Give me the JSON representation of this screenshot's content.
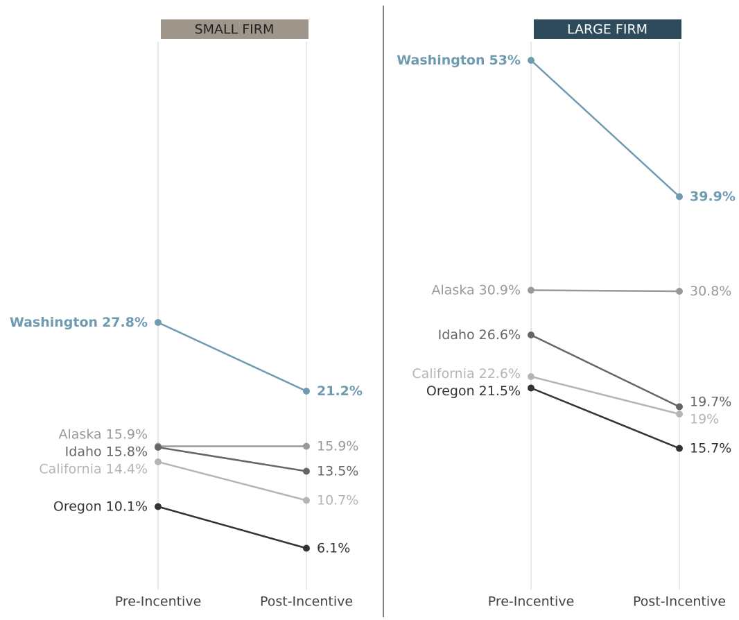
{
  "chart_data": [
    {
      "type": "slope",
      "title": "SMALL FIRM",
      "title_background": "#9e958b",
      "title_color": "#222222",
      "categories": [
        "Pre-Incentive",
        "Post-Incentive"
      ],
      "ylim": [
        0,
        55
      ],
      "series": [
        {
          "name": "Washington",
          "color": "#6f9bb0",
          "bold": true,
          "values": [
            27.8,
            21.2
          ],
          "value_labels": [
            "27.8%",
            "21.2%"
          ]
        },
        {
          "name": "Alaska",
          "color": "#999999",
          "values": [
            15.9,
            15.9
          ],
          "value_labels": [
            "15.9%",
            "15.9%"
          ]
        },
        {
          "name": "Idaho",
          "color": "#666666",
          "values": [
            15.8,
            13.5
          ],
          "value_labels": [
            "15.8%",
            "13.5%"
          ]
        },
        {
          "name": "California",
          "color": "#b5b5b5",
          "values": [
            14.4,
            10.7
          ],
          "value_labels": [
            "14.4%",
            "10.7%"
          ]
        },
        {
          "name": "Oregon",
          "color": "#333333",
          "values": [
            10.1,
            6.1
          ],
          "value_labels": [
            "10.1%",
            "6.1%"
          ]
        }
      ]
    },
    {
      "type": "slope",
      "title": "LARGE FIRM",
      "title_background": "#2d4b5a",
      "title_color": "#ffffff",
      "categories": [
        "Pre-Incentive",
        "Post-Incentive"
      ],
      "ylim": [
        0,
        55
      ],
      "series": [
        {
          "name": "Washington",
          "color": "#6f9bb0",
          "bold": true,
          "values": [
            53,
            39.9
          ],
          "value_labels": [
            "53%",
            "39.9%"
          ]
        },
        {
          "name": "Alaska",
          "color": "#999999",
          "values": [
            30.9,
            30.8
          ],
          "value_labels": [
            "30.9%",
            "30.8%"
          ]
        },
        {
          "name": "Idaho",
          "color": "#666666",
          "values": [
            26.6,
            19.7
          ],
          "value_labels": [
            "26.6%",
            "19.7%"
          ]
        },
        {
          "name": "California",
          "color": "#b5b5b5",
          "values": [
            22.6,
            19
          ],
          "value_labels": [
            "22.6%",
            "19%"
          ]
        },
        {
          "name": "Oregon",
          "color": "#333333",
          "values": [
            21.5,
            15.7
          ],
          "value_labels": [
            "21.5%",
            "15.7%"
          ]
        }
      ]
    }
  ]
}
